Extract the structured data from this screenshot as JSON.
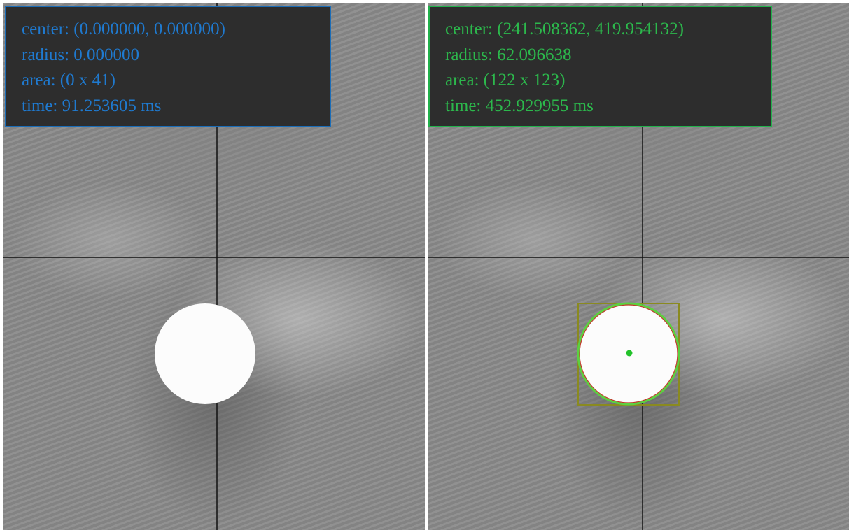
{
  "panels": [
    {
      "lines": [
        "center: (0.000000, 0.000000)",
        "radius: 0.000000",
        "area: (0 x 41)",
        "time: 91.253605 ms"
      ]
    },
    {
      "lines": [
        "center: (241.508362, 419.954132)",
        "radius: 62.096638",
        "area: (122 x 123)",
        "time: 452.929955 ms"
      ]
    }
  ]
}
